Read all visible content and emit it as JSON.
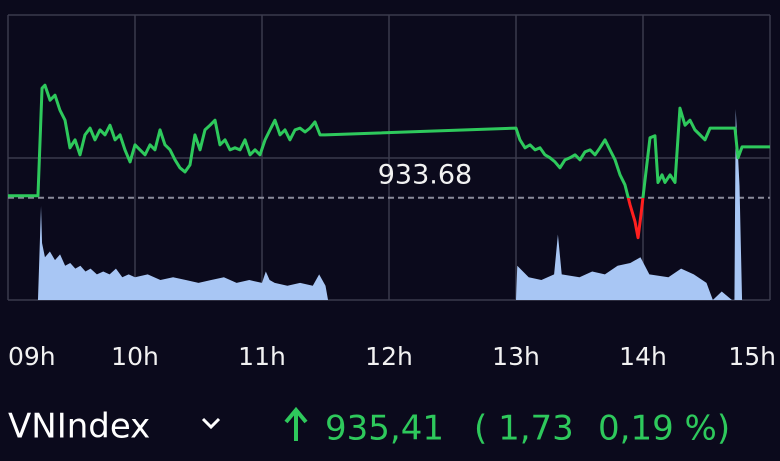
{
  "chart_data": {
    "type": "line",
    "x": [
      9.0,
      9.236,
      9.268,
      9.291,
      9.331,
      9.37,
      9.409,
      9.449,
      9.488,
      9.528,
      9.567,
      9.606,
      9.646,
      9.685,
      9.724,
      9.764,
      9.803,
      9.843,
      9.882,
      9.921,
      9.961,
      10.0,
      10.039,
      10.079,
      10.118,
      10.157,
      10.197,
      10.236,
      10.276,
      10.315,
      10.354,
      10.394,
      10.433,
      10.472,
      10.512,
      10.551,
      10.591,
      10.63,
      10.669,
      10.709,
      10.748,
      10.787,
      10.827,
      10.866,
      10.906,
      10.945,
      10.984,
      11.024,
      11.063,
      11.102,
      11.142,
      11.181,
      11.22,
      11.26,
      11.299,
      11.339,
      11.378,
      11.417,
      11.457,
      11.496,
      13.0,
      13.031,
      13.071,
      13.11,
      13.15,
      13.189,
      13.228,
      13.268,
      13.307,
      13.346,
      13.386,
      13.425,
      13.465,
      13.504,
      13.543,
      13.583,
      13.622,
      13.661,
      13.701,
      13.74,
      13.78,
      13.819,
      13.858,
      13.898,
      13.937,
      13.961,
      13.984,
      14.016,
      14.055,
      14.094,
      14.118,
      14.15,
      14.173,
      14.213,
      14.252,
      14.291,
      14.331,
      14.37,
      14.409,
      14.449,
      14.488,
      14.528,
      14.724,
      14.748,
      14.78,
      15.0
    ],
    "series": [
      {
        "color": "#2ec95c",
        "color_below": "#ff1f1f",
        "values": [
          933.75,
          933.75,
          937.41,
          937.51,
          937.0,
          937.17,
          936.66,
          936.32,
          935.38,
          935.65,
          935.14,
          935.82,
          936.05,
          935.65,
          935.99,
          935.82,
          936.15,
          935.65,
          935.82,
          935.31,
          934.9,
          935.48,
          935.31,
          935.14,
          935.48,
          935.31,
          935.99,
          935.48,
          935.31,
          934.97,
          934.7,
          934.56,
          934.8,
          935.82,
          935.31,
          935.99,
          936.15,
          936.32,
          935.48,
          935.65,
          935.31,
          935.38,
          935.31,
          935.65,
          935.14,
          935.31,
          935.14,
          935.65,
          935.99,
          936.32,
          935.82,
          935.99,
          935.65,
          935.99,
          936.05,
          935.92,
          936.05,
          936.26,
          935.82,
          935.82,
          936.05,
          935.65,
          935.38,
          935.48,
          935.31,
          935.38,
          935.14,
          935.04,
          934.9,
          934.7,
          934.97,
          935.04,
          935.14,
          934.97,
          935.24,
          935.31,
          935.14,
          935.38,
          935.65,
          935.31,
          934.97,
          934.46,
          934.12,
          933.44,
          932.87,
          932.32,
          933.1,
          934.29,
          935.72,
          935.79,
          934.2,
          934.46,
          934.2,
          934.46,
          934.2,
          936.73,
          936.15,
          936.32,
          935.99,
          935.82,
          935.65,
          936.05,
          936.05,
          935.04,
          935.41,
          935.41
        ]
      }
    ],
    "ylim": [
      930.2,
      939.9
    ],
    "reference": 933.68,
    "xlim": [
      9,
      15
    ],
    "xticks": [
      {
        "value": 9,
        "label": "09h"
      },
      {
        "value": 10,
        "label": "10h"
      },
      {
        "value": 11,
        "label": "11h"
      },
      {
        "value": 12,
        "label": "12h"
      },
      {
        "value": 13,
        "label": "13h"
      },
      {
        "value": 14,
        "label": "14h"
      },
      {
        "value": 15,
        "label": "15h"
      }
    ],
    "grid": true,
    "volume": {
      "type": "area",
      "color": "#a8c6f4",
      "y2lim": [
        0,
        100
      ],
      "x": [
        9.236,
        9.26,
        9.268,
        9.291,
        9.33,
        9.37,
        9.41,
        9.45,
        9.49,
        9.53,
        9.57,
        9.61,
        9.65,
        9.7,
        9.75,
        9.8,
        9.85,
        9.9,
        9.95,
        10.0,
        10.1,
        10.2,
        10.3,
        10.4,
        10.5,
        10.6,
        10.7,
        10.8,
        10.9,
        11.0,
        11.03,
        11.06,
        11.1,
        11.2,
        11.3,
        11.4,
        11.45,
        11.5,
        11.52,
        12.25,
        13.0,
        13.01,
        13.1,
        13.2,
        13.3,
        13.33,
        13.36,
        13.5,
        13.6,
        13.7,
        13.8,
        13.9,
        13.98,
        14.05,
        14.2,
        14.3,
        14.4,
        14.5,
        14.55,
        14.62,
        14.7,
        14.72,
        14.73,
        14.76,
        14.78
      ],
      "values": [
        0,
        33,
        20,
        15,
        17,
        14,
        16,
        12,
        13,
        11,
        12,
        10,
        11,
        9,
        10,
        9,
        11,
        8,
        9,
        8,
        9,
        7,
        8,
        7,
        6,
        7,
        8,
        6,
        7,
        6,
        10,
        7,
        6,
        5,
        6,
        5,
        9,
        5,
        0,
        null,
        0,
        12,
        8,
        7,
        9,
        23,
        9,
        8,
        10,
        9,
        12,
        13,
        15,
        9,
        8,
        11,
        9,
        6,
        0,
        3,
        0,
        0,
        67,
        40,
        0
      ]
    }
  },
  "quote": {
    "symbol": "VNIndex",
    "price": "935,41",
    "change": "( 1,73",
    "change_percent": "0,19 %)"
  }
}
